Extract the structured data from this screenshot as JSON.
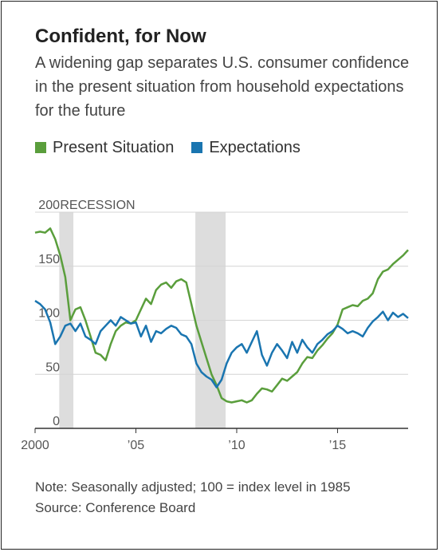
{
  "title": "Confident, for Now",
  "subtitle": "A widening gap separates U.S. consumer confidence in the present situation from household expectations for the future",
  "legend": [
    {
      "label": "Present Situation",
      "color": "#5a9e3c"
    },
    {
      "label": "Expectations",
      "color": "#1a75b0"
    }
  ],
  "notes": {
    "note": "Note: Seasonally adjusted; 100 = index level in 1985",
    "source": "Source: Conference Board"
  },
  "chart_data": {
    "type": "line",
    "title": "Confident, for Now",
    "xlabel": "",
    "ylabel": "",
    "xlim": [
      2000,
      2018.5
    ],
    "ylim": [
      0,
      200
    ],
    "grid": true,
    "legend_position": "top-left",
    "y_ticks": [
      0,
      50,
      100,
      150,
      200
    ],
    "x_ticks": [
      {
        "value": 2000,
        "label": "2000"
      },
      {
        "value": 2005,
        "label": "’05"
      },
      {
        "value": 2010,
        "label": "’10"
      },
      {
        "value": 2015,
        "label": "’15"
      }
    ],
    "shading": [
      {
        "label": "RECESSION",
        "start": 2001.2,
        "end": 2001.9
      },
      {
        "label": "",
        "start": 2007.95,
        "end": 2009.45
      }
    ],
    "series": [
      {
        "name": "Present Situation",
        "color": "#5a9e3c",
        "points": [
          [
            2000.0,
            181
          ],
          [
            2000.25,
            182
          ],
          [
            2000.5,
            181
          ],
          [
            2000.75,
            185
          ],
          [
            2001.0,
            175
          ],
          [
            2001.25,
            160
          ],
          [
            2001.5,
            140
          ],
          [
            2001.75,
            100
          ],
          [
            2002.0,
            110
          ],
          [
            2002.25,
            112
          ],
          [
            2002.5,
            100
          ],
          [
            2002.75,
            85
          ],
          [
            2003.0,
            70
          ],
          [
            2003.25,
            68
          ],
          [
            2003.5,
            63
          ],
          [
            2003.75,
            78
          ],
          [
            2004.0,
            90
          ],
          [
            2004.25,
            95
          ],
          [
            2004.5,
            98
          ],
          [
            2004.75,
            97
          ],
          [
            2005.0,
            100
          ],
          [
            2005.25,
            110
          ],
          [
            2005.5,
            120
          ],
          [
            2005.75,
            115
          ],
          [
            2006.0,
            128
          ],
          [
            2006.25,
            133
          ],
          [
            2006.5,
            135
          ],
          [
            2006.75,
            130
          ],
          [
            2007.0,
            136
          ],
          [
            2007.25,
            138
          ],
          [
            2007.5,
            135
          ],
          [
            2007.75,
            115
          ],
          [
            2008.0,
            95
          ],
          [
            2008.25,
            80
          ],
          [
            2008.5,
            65
          ],
          [
            2008.75,
            50
          ],
          [
            2009.0,
            40
          ],
          [
            2009.25,
            28
          ],
          [
            2009.5,
            25
          ],
          [
            2009.75,
            24
          ],
          [
            2010.0,
            25
          ],
          [
            2010.25,
            26
          ],
          [
            2010.5,
            24
          ],
          [
            2010.75,
            26
          ],
          [
            2011.0,
            32
          ],
          [
            2011.25,
            37
          ],
          [
            2011.5,
            36
          ],
          [
            2011.75,
            34
          ],
          [
            2012.0,
            40
          ],
          [
            2012.25,
            46
          ],
          [
            2012.5,
            44
          ],
          [
            2012.75,
            48
          ],
          [
            2013.0,
            52
          ],
          [
            2013.25,
            60
          ],
          [
            2013.5,
            66
          ],
          [
            2013.75,
            65
          ],
          [
            2014.0,
            72
          ],
          [
            2014.25,
            77
          ],
          [
            2014.5,
            83
          ],
          [
            2014.75,
            88
          ],
          [
            2015.0,
            96
          ],
          [
            2015.25,
            110
          ],
          [
            2015.5,
            112
          ],
          [
            2015.75,
            114
          ],
          [
            2016.0,
            113
          ],
          [
            2016.25,
            118
          ],
          [
            2016.5,
            120
          ],
          [
            2016.75,
            125
          ],
          [
            2017.0,
            138
          ],
          [
            2017.25,
            145
          ],
          [
            2017.5,
            147
          ],
          [
            2017.75,
            152
          ],
          [
            2018.0,
            156
          ],
          [
            2018.25,
            160
          ],
          [
            2018.5,
            165
          ]
        ]
      },
      {
        "name": "Expectations",
        "color": "#1a75b0",
        "points": [
          [
            2000.0,
            118
          ],
          [
            2000.25,
            115
          ],
          [
            2000.5,
            110
          ],
          [
            2000.75,
            98
          ],
          [
            2001.0,
            78
          ],
          [
            2001.25,
            85
          ],
          [
            2001.5,
            95
          ],
          [
            2001.75,
            97
          ],
          [
            2002.0,
            90
          ],
          [
            2002.25,
            97
          ],
          [
            2002.5,
            85
          ],
          [
            2002.75,
            82
          ],
          [
            2003.0,
            78
          ],
          [
            2003.25,
            90
          ],
          [
            2003.5,
            95
          ],
          [
            2003.75,
            100
          ],
          [
            2004.0,
            95
          ],
          [
            2004.25,
            103
          ],
          [
            2004.5,
            100
          ],
          [
            2004.75,
            97
          ],
          [
            2005.0,
            98
          ],
          [
            2005.25,
            85
          ],
          [
            2005.5,
            95
          ],
          [
            2005.75,
            80
          ],
          [
            2006.0,
            90
          ],
          [
            2006.25,
            88
          ],
          [
            2006.5,
            92
          ],
          [
            2006.75,
            95
          ],
          [
            2007.0,
            93
          ],
          [
            2007.25,
            87
          ],
          [
            2007.5,
            85
          ],
          [
            2007.75,
            78
          ],
          [
            2008.0,
            60
          ],
          [
            2008.25,
            52
          ],
          [
            2008.5,
            48
          ],
          [
            2008.75,
            45
          ],
          [
            2009.0,
            38
          ],
          [
            2009.25,
            45
          ],
          [
            2009.5,
            60
          ],
          [
            2009.75,
            70
          ],
          [
            2010.0,
            75
          ],
          [
            2010.25,
            78
          ],
          [
            2010.5,
            70
          ],
          [
            2010.75,
            80
          ],
          [
            2011.0,
            90
          ],
          [
            2011.25,
            68
          ],
          [
            2011.5,
            58
          ],
          [
            2011.75,
            70
          ],
          [
            2012.0,
            78
          ],
          [
            2012.25,
            72
          ],
          [
            2012.5,
            65
          ],
          [
            2012.75,
            80
          ],
          [
            2013.0,
            70
          ],
          [
            2013.25,
            82
          ],
          [
            2013.5,
            75
          ],
          [
            2013.75,
            70
          ],
          [
            2014.0,
            78
          ],
          [
            2014.25,
            82
          ],
          [
            2014.5,
            87
          ],
          [
            2014.75,
            90
          ],
          [
            2015.0,
            95
          ],
          [
            2015.25,
            92
          ],
          [
            2015.5,
            88
          ],
          [
            2015.75,
            90
          ],
          [
            2016.0,
            88
          ],
          [
            2016.25,
            85
          ],
          [
            2016.5,
            93
          ],
          [
            2016.75,
            99
          ],
          [
            2017.0,
            103
          ],
          [
            2017.25,
            108
          ],
          [
            2017.5,
            100
          ],
          [
            2017.75,
            107
          ],
          [
            2018.0,
            103
          ],
          [
            2018.25,
            106
          ],
          [
            2018.5,
            102
          ]
        ]
      }
    ]
  }
}
